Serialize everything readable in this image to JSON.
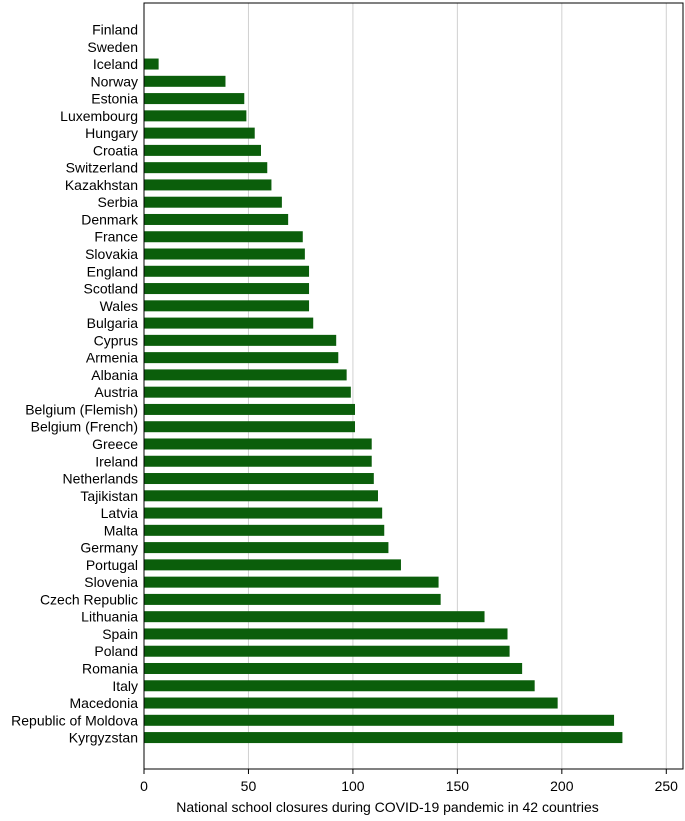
{
  "chart_data": {
    "type": "bar",
    "orientation": "horizontal",
    "categories": [
      "Finland",
      "Sweden",
      "Iceland",
      "Norway",
      "Estonia",
      "Luxembourg",
      "Hungary",
      "Croatia",
      "Switzerland",
      "Kazakhstan",
      "Serbia",
      "Denmark",
      "France",
      "Slovakia",
      "England",
      "Scotland",
      "Wales",
      "Bulgaria",
      "Cyprus",
      "Armenia",
      "Albania",
      "Austria",
      "Belgium (Flemish)",
      "Belgium (French)",
      "Greece",
      "Ireland",
      "Netherlands",
      "Tajikistan",
      "Latvia",
      "Malta",
      "Germany",
      "Portugal",
      "Slovenia",
      "Czech Republic",
      "Lithuania",
      "Spain",
      "Poland",
      "Romania",
      "Italy",
      "Macedonia",
      "Republic of Moldova",
      "Kyrgyzstan"
    ],
    "values": [
      0,
      0,
      7,
      39,
      48,
      49,
      53,
      56,
      59,
      61,
      66,
      69,
      76,
      77,
      79,
      79,
      79,
      81,
      92,
      93,
      97,
      99,
      101,
      101,
      109,
      109,
      110,
      112,
      114,
      115,
      117,
      123,
      141,
      142,
      163,
      174,
      175,
      181,
      187,
      198,
      225,
      229
    ],
    "xlabel": "National school closures during COVID-19 pandemic in 42 countries",
    "ylabel": "",
    "xlim": [
      0,
      258
    ],
    "xticks": [
      0,
      50,
      100,
      150,
      200,
      250
    ],
    "grid": "vertical",
    "bar_color": "#0b5e0b"
  }
}
